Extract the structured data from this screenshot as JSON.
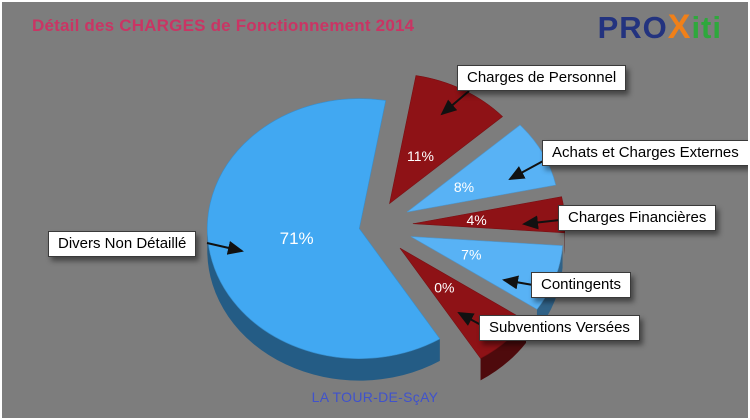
{
  "title": "Détail des CHARGES de Fonctionnement 2014",
  "logo": {
    "part1": "PRO",
    "part2": "X",
    "part3": "iti"
  },
  "footer": "LA TOUR-DE-SçAY",
  "colors": {
    "background": "#7d7d7d",
    "frame_border": "#ffffff",
    "title_text": "#c93564",
    "footer_text": "#4052cc",
    "logo_blue": "#23337f",
    "logo_orange": "#f08019",
    "logo_green": "#2ea83c",
    "main_blue": "#41a8f2",
    "light_blue": "#58b2f5",
    "dark_red": "#8e1216",
    "percent_text": "#ffffff",
    "callout_bg": "#ffffff",
    "callout_text": "#000000"
  },
  "chart_data": {
    "type": "pie",
    "title": "Détail des CHARGES de Fonctionnement 2014",
    "unit": "%",
    "legend_position": "callouts",
    "style": "3d-exploded",
    "slices": [
      {
        "label": "Divers Non Détaillé",
        "value": 71,
        "display": "71%",
        "color": "#41a8f2"
      },
      {
        "label": "Charges de Personnel",
        "value": 11,
        "display": "11%",
        "color": "#8e1216"
      },
      {
        "label": "Achats et Charges Externes",
        "value": 8,
        "display": "8%",
        "color": "#58b2f5"
      },
      {
        "label": "Charges Financières",
        "value": 4,
        "display": "4%",
        "color": "#8e1216"
      },
      {
        "label": "Contingents",
        "value": 7,
        "display": "7%",
        "color": "#58b2f5"
      },
      {
        "label": "Subventions Versées",
        "value": 0,
        "display": "0%",
        "color": "#8e1216"
      }
    ]
  }
}
